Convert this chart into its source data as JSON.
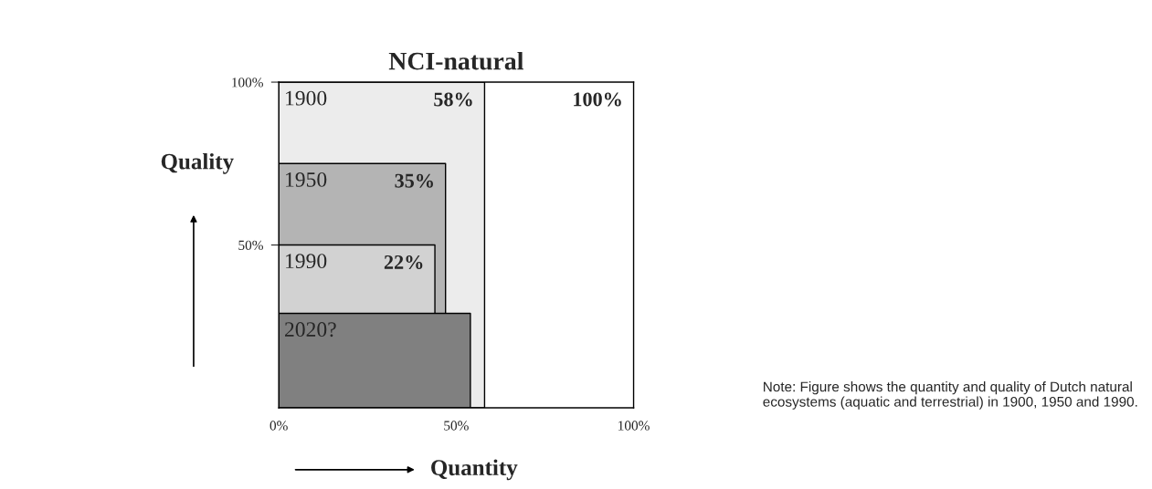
{
  "chart_data": {
    "type": "area",
    "title": "NCI-natural",
    "xlabel": "Quantity",
    "ylabel": "Quality",
    "series": [
      {
        "name": "1900",
        "color": "#ececec",
        "x": [
          0,
          58
        ],
        "values": [
          100,
          100
        ]
      },
      {
        "name": "1950",
        "color": "#b4b4b4",
        "x": [
          0,
          47
        ],
        "values": [
          75,
          75
        ]
      },
      {
        "name": "1990",
        "color": "#d2d2d2",
        "x": [
          0,
          44
        ],
        "values": [
          50,
          50
        ]
      },
      {
        "name": "2020?",
        "color": "#808080",
        "x": [
          0,
          54
        ],
        "values": [
          29,
          29
        ]
      }
    ],
    "xlim": [
      0,
      100
    ],
    "ylim": [
      0,
      100
    ],
    "xticks": [
      {
        "value": 0,
        "label": "0%"
      },
      {
        "value": 50,
        "label": "50%"
      },
      {
        "value": 100,
        "label": "100%"
      }
    ],
    "yticks": [
      {
        "value": 50,
        "label": "50%"
      },
      {
        "value": 100,
        "label": "100%"
      }
    ],
    "annotations": [
      {
        "text": "58%",
        "x": 58,
        "y": 100
      },
      {
        "text": "35%",
        "x": 47,
        "y": 75
      },
      {
        "text": "22%",
        "x": 44,
        "y": 50
      },
      "100%",
      "Note: Figure shows the quantity and quality of Dutch natural ecosystems (aquatic and terrestrial) in 1900, 1950 and 1990."
    ],
    "legend": false
  }
}
